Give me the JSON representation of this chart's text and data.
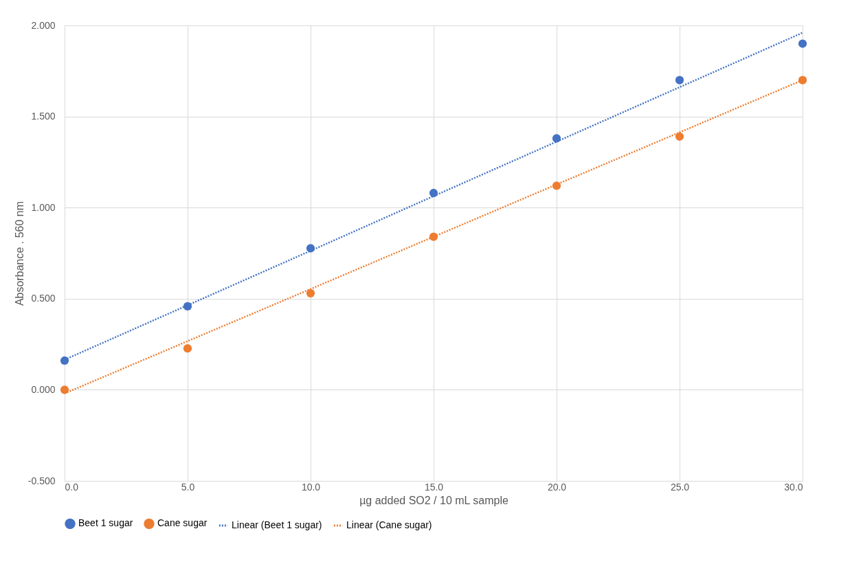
{
  "chart_data": {
    "type": "scatter",
    "xlabel": "µg added SO2 / 10 mL sample",
    "ylabel": "Absorbance . 560 nm",
    "x": [
      0,
      5,
      10,
      15,
      20,
      25,
      30
    ],
    "series": [
      {
        "name": "Beet 1 sugar",
        "color": "#4472c4",
        "marker": "circle",
        "values": [
          0.16,
          0.458,
          0.777,
          1.08,
          1.38,
          1.7,
          1.9
        ]
      },
      {
        "name": "Cane sugar",
        "color": "#ed7d31",
        "marker": "circle",
        "values": [
          0.0,
          0.227,
          0.53,
          0.84,
          1.12,
          1.39,
          1.7
        ]
      },
      {
        "name": "Linear (Beet 1 sugar)",
        "color": "#4472c4",
        "type": "line",
        "marker": "none",
        "line_style": "dotted",
        "values": [
          0.165,
          0.464,
          0.763,
          1.063,
          1.362,
          1.661,
          1.96
        ]
      },
      {
        "name": "Linear (Cane sugar)",
        "color": "#ed7d31",
        "type": "line",
        "marker": "none",
        "line_style": "dotted",
        "values": [
          -0.02,
          0.267,
          0.553,
          0.84,
          1.127,
          1.413,
          1.7
        ]
      }
    ],
    "xlim": [
      0,
      30
    ],
    "xticks": [
      {
        "value": 0,
        "label": "0.0"
      },
      {
        "value": 5,
        "label": "5.0"
      },
      {
        "value": 10,
        "label": "10.0"
      },
      {
        "value": 15,
        "label": "15.0"
      },
      {
        "value": 20,
        "label": "20.0"
      },
      {
        "value": 25,
        "label": "25.0"
      },
      {
        "value": 30,
        "label": "30.0"
      }
    ],
    "ylim": [
      -0.5,
      2.0
    ],
    "yticks": [
      {
        "value": -0.5,
        "label": "-0.500"
      },
      {
        "value": 0,
        "label": "0.000"
      },
      {
        "value": 0.5,
        "label": "0.500"
      },
      {
        "value": 1,
        "label": "1.000"
      },
      {
        "value": 1.5,
        "label": "1.500"
      },
      {
        "value": 2,
        "label": "2.000"
      }
    ],
    "grid": true,
    "legend": "bottom"
  }
}
